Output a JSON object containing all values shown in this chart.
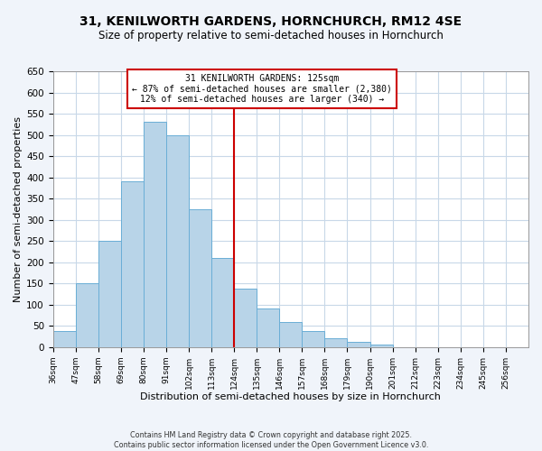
{
  "title": "31, KENILWORTH GARDENS, HORNCHURCH, RM12 4SE",
  "subtitle": "Size of property relative to semi-detached houses in Hornchurch",
  "xlabel": "Distribution of semi-detached houses by size in Hornchurch",
  "ylabel": "Number of semi-detached properties",
  "bin_labels": [
    "36sqm",
    "47sqm",
    "58sqm",
    "69sqm",
    "80sqm",
    "91sqm",
    "102sqm",
    "113sqm",
    "124sqm",
    "135sqm",
    "146sqm",
    "157sqm",
    "168sqm",
    "179sqm",
    "190sqm",
    "201sqm",
    "212sqm",
    "223sqm",
    "234sqm",
    "245sqm",
    "256sqm"
  ],
  "bin_edges": [
    36,
    47,
    58,
    69,
    80,
    91,
    102,
    113,
    124,
    135,
    146,
    157,
    168,
    179,
    190,
    201,
    212,
    223,
    234,
    245,
    256,
    267
  ],
  "bar_heights": [
    38,
    150,
    250,
    390,
    530,
    500,
    325,
    210,
    138,
    90,
    60,
    38,
    20,
    12,
    5,
    0,
    0,
    0,
    0,
    0,
    0
  ],
  "bar_color": "#b8d4e8",
  "bar_edge_color": "#6aaed6",
  "vline_x": 124,
  "vline_color": "#cc0000",
  "ylim": [
    0,
    650
  ],
  "yticks": [
    0,
    50,
    100,
    150,
    200,
    250,
    300,
    350,
    400,
    450,
    500,
    550,
    600,
    650
  ],
  "annotation_title": "31 KENILWORTH GARDENS: 125sqm",
  "annotation_line1": "← 87% of semi-detached houses are smaller (2,380)",
  "annotation_line2": "12% of semi-detached houses are larger (340) →",
  "annotation_box_color": "#cc0000",
  "footer1": "Contains HM Land Registry data © Crown copyright and database right 2025.",
  "footer2": "Contains public sector information licensed under the Open Government Licence v3.0.",
  "bg_color": "#f0f4fa",
  "plot_bg_color": "#ffffff",
  "grid_color": "#c8d8e8",
  "title_fontsize": 10,
  "subtitle_fontsize": 8.5
}
